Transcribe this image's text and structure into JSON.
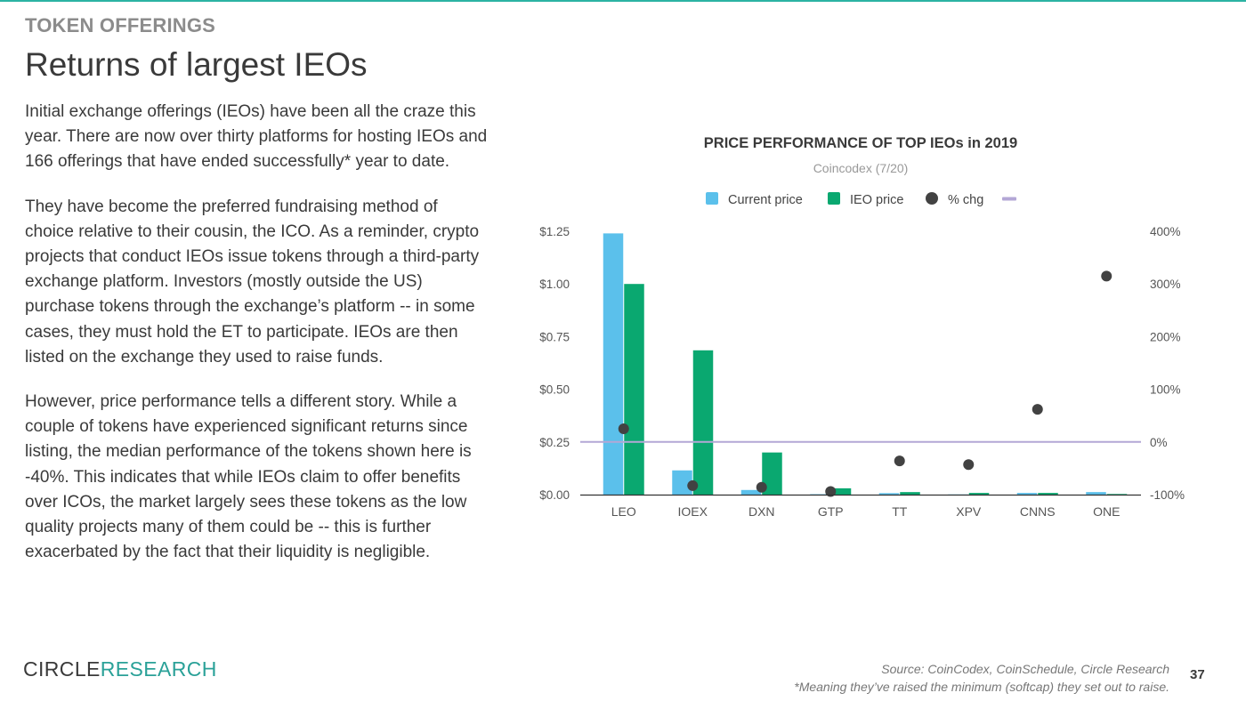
{
  "header": {
    "kicker": "TOKEN OFFERINGS",
    "title": "Returns of largest IEOs"
  },
  "body": {
    "paragraphs": [
      "Initial exchange offerings (IEOs) have been all the craze this year. There are now over thirty platforms for hosting IEOs and 166 offerings that have ended successfully* year to date.",
      "They have become the preferred fundraising method of choice relative to their cousin, the ICO. As a reminder, crypto projects that conduct IEOs issue tokens through a third-party exchange platform. Investors (mostly outside the US) purchase tokens through the exchange’s platform -- in some cases, they must hold the ET to participate. IEOs are then listed on the exchange they used to raise funds.",
      "However, price performance tells a different story. While a couple of tokens have experienced significant returns since listing, the median performance of the tokens shown here is -40%. This indicates that while IEOs claim to offer benefits over ICOs, the market largely sees these tokens as the low quality projects many of them could be -- this is further exacerbated by the fact that their liquidity is negligible."
    ]
  },
  "footer": {
    "logo_part1": "CIRCLE",
    "logo_part2": "RESEARCH",
    "source": "Source: CoinCodex, CoinSchedule, Circle Research",
    "note": "*Meaning they’ve raised the minimum (softcap) they set out to raise.",
    "page_number": "37"
  },
  "colors": {
    "current_price": "#5bc0eb",
    "ieo_price": "#0aa870",
    "pct_chg": "#424242",
    "zero_line": "#b3a7d6",
    "axis_text": "#555555",
    "accent": "#2aa198"
  },
  "chart_data": {
    "type": "bar",
    "title": "PRICE PERFORMANCE OF TOP IEOs in 2019",
    "subtitle": "Coincodex (7/20)",
    "legend_position": "top",
    "legend": [
      "Current price",
      "IEO price",
      "% chg",
      ""
    ],
    "categories": [
      "LEO",
      "IOEX",
      "DXN",
      "GTP",
      "TT",
      "XPV",
      "CNNS",
      "ONE"
    ],
    "series": [
      {
        "name": "Current price",
        "axis": "left",
        "type": "bar",
        "values": [
          1.24,
          0.115,
          0.022,
          0.002,
          0.007,
          0.001,
          0.008,
          0.012
        ]
      },
      {
        "name": "IEO price",
        "axis": "left",
        "type": "bar",
        "values": [
          1.0,
          0.685,
          0.2,
          0.03,
          0.012,
          0.008,
          0.008,
          0.003
        ]
      },
      {
        "name": "% chg",
        "axis": "right",
        "type": "scatter",
        "values": [
          25,
          -83,
          -86,
          -94,
          -36,
          -43,
          62,
          315
        ]
      }
    ],
    "y_left": {
      "ticks": [
        "$0.00",
        "$0.25",
        "$0.50",
        "$0.75",
        "$1.00",
        "$1.25"
      ],
      "min": 0,
      "max": 1.25
    },
    "y_right": {
      "ticks": [
        "-100%",
        "0%",
        "100%",
        "200%",
        "300%",
        "400%"
      ],
      "min": -100,
      "max": 400
    },
    "reference_line": {
      "axis": "right",
      "value": 0
    },
    "grid": false
  }
}
